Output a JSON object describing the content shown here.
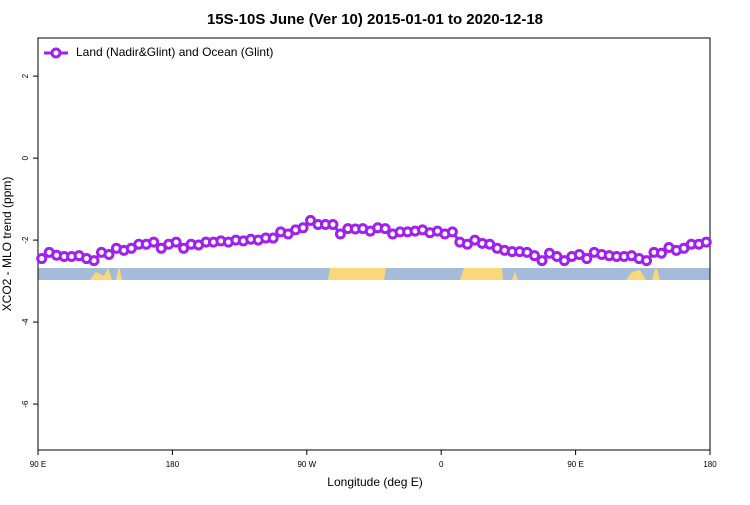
{
  "chart_data": {
    "type": "line",
    "title": "15S-10S June (Ver 10)   2015-01-01 to 2020-12-18",
    "x_label": "Longitude (deg E)",
    "y_label": "XCO2 - MLO trend (ppm)",
    "xlim": [
      90,
      540
    ],
    "ylim": [
      -7.12,
      2.93
    ],
    "xticks": [
      {
        "value": 90,
        "label": "90 E"
      },
      {
        "value": 180,
        "label": "180"
      },
      {
        "value": 270,
        "label": "90 W"
      },
      {
        "value": 360,
        "label": "0"
      },
      {
        "value": 450,
        "label": "90 E"
      },
      {
        "value": 540,
        "label": "180"
      }
    ],
    "yticks": [
      2,
      0,
      -2,
      -4,
      -6
    ],
    "legend": "top-left",
    "x": [
      92.5,
      97.5,
      102.5,
      107.5,
      112.5,
      117.5,
      122.5,
      127.5,
      132.5,
      137.5,
      142.5,
      147.5,
      152.5,
      157.5,
      162.5,
      167.5,
      172.5,
      177.5,
      182.5,
      187.5,
      192.5,
      197.5,
      202.5,
      207.5,
      212.5,
      217.5,
      222.5,
      227.5,
      232.5,
      237.5,
      242.5,
      247.5,
      252.5,
      257.5,
      262.5,
      267.5,
      272.5,
      277.5,
      282.5,
      287.5,
      292.5,
      297.5,
      302.5,
      307.5,
      312.5,
      317.5,
      322.5,
      327.5,
      332.5,
      337.5,
      342.5,
      347.5,
      352.5,
      357.5,
      362.5,
      367.5,
      372.5,
      377.5,
      382.5,
      387.5,
      392.5,
      397.5,
      402.5,
      407.5,
      412.5,
      417.5,
      422.5,
      427.5,
      432.5,
      437.5,
      442.5,
      447.5,
      452.5,
      457.5,
      462.5,
      467.5,
      472.5,
      477.5,
      482.5,
      487.5,
      492.5,
      497.5,
      502.5,
      507.5,
      512.5,
      517.5,
      522.5,
      527.5,
      532.5,
      537.5
    ],
    "series": [
      {
        "name": "Land (Nadir&Glint) and Ocean (Glint)",
        "color": "#a020f0",
        "values": [
          -2.45,
          -2.3,
          -2.37,
          -2.4,
          -2.4,
          -2.38,
          -2.45,
          -2.5,
          -2.3,
          -2.35,
          -2.2,
          -2.25,
          -2.2,
          -2.1,
          -2.1,
          -2.05,
          -2.2,
          -2.1,
          -2.05,
          -2.2,
          -2.1,
          -2.12,
          -2.05,
          -2.05,
          -2.02,
          -2.05,
          -2.0,
          -2.02,
          -1.98,
          -2.0,
          -1.95,
          -1.95,
          -1.8,
          -1.85,
          -1.75,
          -1.7,
          -1.52,
          -1.62,
          -1.62,
          -1.62,
          -1.85,
          -1.72,
          -1.73,
          -1.72,
          -1.78,
          -1.7,
          -1.72,
          -1.85,
          -1.8,
          -1.8,
          -1.78,
          -1.75,
          -1.82,
          -1.78,
          -1.85,
          -1.8,
          -2.05,
          -2.1,
          -2.0,
          -2.08,
          -2.1,
          -2.2,
          -2.25,
          -2.28,
          -2.28,
          -2.3,
          -2.38,
          -2.5,
          -2.32,
          -2.4,
          -2.5,
          -2.4,
          -2.35,
          -2.45,
          -2.3,
          -2.35,
          -2.38,
          -2.4,
          -2.4,
          -2.38,
          -2.45,
          -2.5,
          -2.3,
          -2.32,
          -2.18,
          -2.25,
          -2.2,
          -2.1,
          -2.1,
          -2.05
        ]
      }
    ]
  }
}
